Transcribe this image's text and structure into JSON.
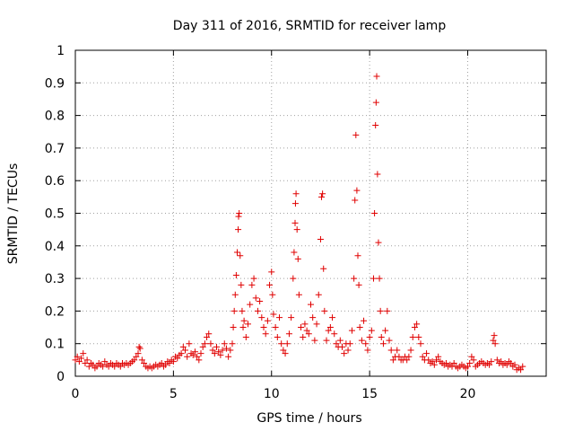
{
  "chart_data": {
    "type": "scatter",
    "title": "Day 311 of 2016, SRMTID for receiver lamp",
    "xlabel": "GPS time / hours",
    "ylabel": "SRMTID / TECUs",
    "xlim": [
      0,
      24
    ],
    "ylim": [
      0,
      1
    ],
    "xticks": [
      0,
      5,
      10,
      15,
      20
    ],
    "yticks": [
      0,
      0.1,
      0.2,
      0.3,
      0.4,
      0.5,
      0.6,
      0.7,
      0.8,
      0.9,
      1
    ],
    "xtick_labels": [
      "0",
      "5",
      "10",
      "15",
      "20"
    ],
    "ytick_labels": [
      "0",
      "0.1",
      "0.2",
      "0.3",
      "0.4",
      "0.5",
      "0.6",
      "0.7",
      "0.8",
      "0.9",
      "1"
    ],
    "grid": true,
    "marker": "+",
    "color": "#e00000",
    "series": [
      {
        "name": "SRMTID",
        "points": [
          [
            0.0,
            0.05
          ],
          [
            0.1,
            0.06
          ],
          [
            0.2,
            0.045
          ],
          [
            0.3,
            0.055
          ],
          [
            0.4,
            0.07
          ],
          [
            0.5,
            0.04
          ],
          [
            0.6,
            0.05
          ],
          [
            0.7,
            0.03
          ],
          [
            0.8,
            0.04
          ],
          [
            0.9,
            0.035
          ],
          [
            1.0,
            0.025
          ],
          [
            1.1,
            0.03
          ],
          [
            1.2,
            0.04
          ],
          [
            1.3,
            0.035
          ],
          [
            1.4,
            0.03
          ],
          [
            1.5,
            0.045
          ],
          [
            1.6,
            0.035
          ],
          [
            1.7,
            0.03
          ],
          [
            1.8,
            0.04
          ],
          [
            1.9,
            0.035
          ],
          [
            2.0,
            0.03
          ],
          [
            2.1,
            0.04
          ],
          [
            2.2,
            0.035
          ],
          [
            2.3,
            0.03
          ],
          [
            2.4,
            0.04
          ],
          [
            2.5,
            0.035
          ],
          [
            2.6,
            0.04
          ],
          [
            2.7,
            0.035
          ],
          [
            2.8,
            0.04
          ],
          [
            2.9,
            0.045
          ],
          [
            3.0,
            0.05
          ],
          [
            3.1,
            0.06
          ],
          [
            3.2,
            0.07
          ],
          [
            3.25,
            0.09
          ],
          [
            3.3,
            0.085
          ],
          [
            3.4,
            0.05
          ],
          [
            3.5,
            0.04
          ],
          [
            3.6,
            0.03
          ],
          [
            3.7,
            0.025
          ],
          [
            3.8,
            0.03
          ],
          [
            3.9,
            0.025
          ],
          [
            4.0,
            0.03
          ],
          [
            4.1,
            0.035
          ],
          [
            4.2,
            0.03
          ],
          [
            4.3,
            0.035
          ],
          [
            4.4,
            0.04
          ],
          [
            4.5,
            0.03
          ],
          [
            4.6,
            0.035
          ],
          [
            4.7,
            0.045
          ],
          [
            4.8,
            0.04
          ],
          [
            4.9,
            0.05
          ],
          [
            5.0,
            0.045
          ],
          [
            5.1,
            0.06
          ],
          [
            5.2,
            0.055
          ],
          [
            5.3,
            0.065
          ],
          [
            5.4,
            0.07
          ],
          [
            5.5,
            0.09
          ],
          [
            5.6,
            0.08
          ],
          [
            5.7,
            0.06
          ],
          [
            5.8,
            0.1
          ],
          [
            5.9,
            0.07
          ],
          [
            6.0,
            0.065
          ],
          [
            6.1,
            0.075
          ],
          [
            6.2,
            0.06
          ],
          [
            6.3,
            0.05
          ],
          [
            6.4,
            0.07
          ],
          [
            6.5,
            0.09
          ],
          [
            6.6,
            0.1
          ],
          [
            6.7,
            0.12
          ],
          [
            6.8,
            0.13
          ],
          [
            6.9,
            0.1
          ],
          [
            7.0,
            0.08
          ],
          [
            7.1,
            0.07
          ],
          [
            7.2,
            0.09
          ],
          [
            7.3,
            0.075
          ],
          [
            7.4,
            0.065
          ],
          [
            7.5,
            0.08
          ],
          [
            7.6,
            0.1
          ],
          [
            7.7,
            0.085
          ],
          [
            7.8,
            0.06
          ],
          [
            7.9,
            0.08
          ],
          [
            8.0,
            0.1
          ],
          [
            8.05,
            0.15
          ],
          [
            8.1,
            0.2
          ],
          [
            8.15,
            0.25
          ],
          [
            8.2,
            0.31
          ],
          [
            8.25,
            0.38
          ],
          [
            8.3,
            0.45
          ],
          [
            8.32,
            0.49
          ],
          [
            8.35,
            0.5
          ],
          [
            8.4,
            0.37
          ],
          [
            8.45,
            0.28
          ],
          [
            8.5,
            0.2
          ],
          [
            8.55,
            0.15
          ],
          [
            8.6,
            0.17
          ],
          [
            8.7,
            0.12
          ],
          [
            8.8,
            0.16
          ],
          [
            8.9,
            0.22
          ],
          [
            9.0,
            0.28
          ],
          [
            9.1,
            0.3
          ],
          [
            9.2,
            0.24
          ],
          [
            9.3,
            0.2
          ],
          [
            9.4,
            0.23
          ],
          [
            9.5,
            0.18
          ],
          [
            9.6,
            0.15
          ],
          [
            9.7,
            0.13
          ],
          [
            9.8,
            0.17
          ],
          [
            9.9,
            0.28
          ],
          [
            10.0,
            0.32
          ],
          [
            10.05,
            0.25
          ],
          [
            10.1,
            0.19
          ],
          [
            10.2,
            0.15
          ],
          [
            10.3,
            0.12
          ],
          [
            10.4,
            0.18
          ],
          [
            10.5,
            0.1
          ],
          [
            10.6,
            0.08
          ],
          [
            10.7,
            0.07
          ],
          [
            10.8,
            0.1
          ],
          [
            10.9,
            0.13
          ],
          [
            11.0,
            0.18
          ],
          [
            11.1,
            0.3
          ],
          [
            11.15,
            0.38
          ],
          [
            11.2,
            0.47
          ],
          [
            11.22,
            0.53
          ],
          [
            11.25,
            0.56
          ],
          [
            11.3,
            0.45
          ],
          [
            11.35,
            0.36
          ],
          [
            11.4,
            0.25
          ],
          [
            11.5,
            0.15
          ],
          [
            11.6,
            0.12
          ],
          [
            11.7,
            0.16
          ],
          [
            11.8,
            0.14
          ],
          [
            11.9,
            0.13
          ],
          [
            12.0,
            0.22
          ],
          [
            12.1,
            0.18
          ],
          [
            12.2,
            0.11
          ],
          [
            12.3,
            0.16
          ],
          [
            12.4,
            0.25
          ],
          [
            12.5,
            0.42
          ],
          [
            12.55,
            0.55
          ],
          [
            12.6,
            0.56
          ],
          [
            12.65,
            0.33
          ],
          [
            12.7,
            0.2
          ],
          [
            12.8,
            0.11
          ],
          [
            12.9,
            0.14
          ],
          [
            13.0,
            0.15
          ],
          [
            13.1,
            0.18
          ],
          [
            13.2,
            0.13
          ],
          [
            13.3,
            0.1
          ],
          [
            13.4,
            0.09
          ],
          [
            13.5,
            0.11
          ],
          [
            13.6,
            0.09
          ],
          [
            13.7,
            0.07
          ],
          [
            13.8,
            0.1
          ],
          [
            13.9,
            0.08
          ],
          [
            14.0,
            0.1
          ],
          [
            14.1,
            0.14
          ],
          [
            14.2,
            0.3
          ],
          [
            14.25,
            0.54
          ],
          [
            14.3,
            0.74
          ],
          [
            14.35,
            0.57
          ],
          [
            14.4,
            0.37
          ],
          [
            14.45,
            0.28
          ],
          [
            14.5,
            0.15
          ],
          [
            14.6,
            0.11
          ],
          [
            14.7,
            0.17
          ],
          [
            14.8,
            0.1
          ],
          [
            14.9,
            0.08
          ],
          [
            15.0,
            0.12
          ],
          [
            15.1,
            0.14
          ],
          [
            15.2,
            0.3
          ],
          [
            15.25,
            0.5
          ],
          [
            15.3,
            0.77
          ],
          [
            15.33,
            0.84
          ],
          [
            15.36,
            0.92
          ],
          [
            15.4,
            0.62
          ],
          [
            15.45,
            0.41
          ],
          [
            15.5,
            0.3
          ],
          [
            15.55,
            0.2
          ],
          [
            15.6,
            0.12
          ],
          [
            15.7,
            0.1
          ],
          [
            15.8,
            0.14
          ],
          [
            15.9,
            0.2
          ],
          [
            16.0,
            0.11
          ],
          [
            16.1,
            0.08
          ],
          [
            16.2,
            0.05
          ],
          [
            16.3,
            0.06
          ],
          [
            16.4,
            0.08
          ],
          [
            16.5,
            0.06
          ],
          [
            16.6,
            0.05
          ],
          [
            16.7,
            0.05
          ],
          [
            16.8,
            0.06
          ],
          [
            16.9,
            0.05
          ],
          [
            17.0,
            0.06
          ],
          [
            17.1,
            0.08
          ],
          [
            17.2,
            0.12
          ],
          [
            17.3,
            0.15
          ],
          [
            17.4,
            0.16
          ],
          [
            17.5,
            0.12
          ],
          [
            17.6,
            0.1
          ],
          [
            17.7,
            0.06
          ],
          [
            17.8,
            0.05
          ],
          [
            17.9,
            0.07
          ],
          [
            18.0,
            0.05
          ],
          [
            18.1,
            0.04
          ],
          [
            18.2,
            0.045
          ],
          [
            18.3,
            0.035
          ],
          [
            18.4,
            0.05
          ],
          [
            18.5,
            0.06
          ],
          [
            18.6,
            0.045
          ],
          [
            18.7,
            0.04
          ],
          [
            18.8,
            0.035
          ],
          [
            18.9,
            0.04
          ],
          [
            19.0,
            0.03
          ],
          [
            19.1,
            0.035
          ],
          [
            19.2,
            0.03
          ],
          [
            19.3,
            0.04
          ],
          [
            19.4,
            0.03
          ],
          [
            19.5,
            0.025
          ],
          [
            19.6,
            0.03
          ],
          [
            19.7,
            0.035
          ],
          [
            19.8,
            0.03
          ],
          [
            19.9,
            0.025
          ],
          [
            20.0,
            0.03
          ],
          [
            20.1,
            0.04
          ],
          [
            20.2,
            0.06
          ],
          [
            20.3,
            0.05
          ],
          [
            20.4,
            0.03
          ],
          [
            20.5,
            0.035
          ],
          [
            20.6,
            0.04
          ],
          [
            20.7,
            0.045
          ],
          [
            20.8,
            0.04
          ],
          [
            20.9,
            0.035
          ],
          [
            21.0,
            0.04
          ],
          [
            21.1,
            0.035
          ],
          [
            21.2,
            0.045
          ],
          [
            21.3,
            0.11
          ],
          [
            21.35,
            0.125
          ],
          [
            21.4,
            0.1
          ],
          [
            21.5,
            0.05
          ],
          [
            21.6,
            0.04
          ],
          [
            21.7,
            0.045
          ],
          [
            21.8,
            0.035
          ],
          [
            21.9,
            0.04
          ],
          [
            22.0,
            0.035
          ],
          [
            22.1,
            0.045
          ],
          [
            22.2,
            0.04
          ],
          [
            22.3,
            0.03
          ],
          [
            22.4,
            0.035
          ],
          [
            22.5,
            0.02
          ],
          [
            22.6,
            0.025
          ],
          [
            22.7,
            0.02
          ],
          [
            22.8,
            0.03
          ]
        ]
      }
    ]
  }
}
